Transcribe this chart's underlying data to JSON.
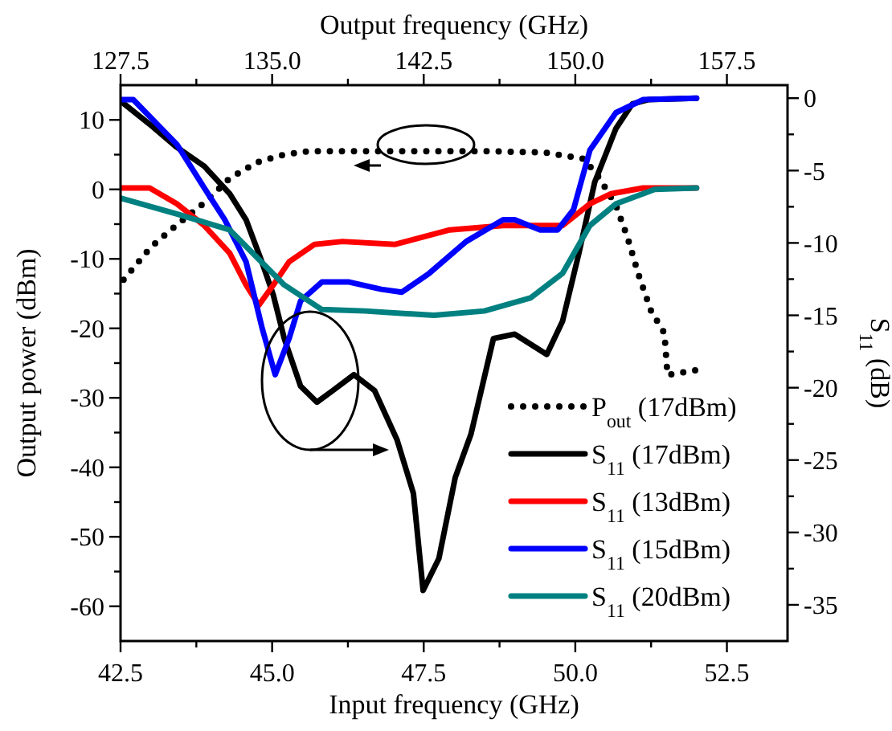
{
  "chart_data": {
    "type": "line",
    "xlabel": "Input frequency (GHz)",
    "x2label": "Output frequency (GHz)",
    "ylabel": "Output power (dBm)",
    "y2label": "S$_{11}$ (dB)",
    "xlim": [
      42.5,
      53.5
    ],
    "xticks": [
      42.5,
      {
        "value": 43.75,
        "label": null
      },
      {
        "value": 45,
        "label": "45.0"
      },
      {
        "value": 46.25,
        "label": null
      },
      47.5,
      {
        "value": 48.75,
        "label": null
      },
      {
        "value": 50,
        "label": "50.0"
      },
      {
        "value": 51.25,
        "label": null
      },
      52.5
    ],
    "x2lim": [
      127.5,
      160.5
    ],
    "x2ticks": [
      127.5,
      {
        "value": 131.25,
        "label": null
      },
      {
        "value": 135,
        "label": "135.0"
      },
      {
        "value": 138.75,
        "label": null
      },
      142.5,
      {
        "value": 146.25,
        "label": null
      },
      {
        "value": 150,
        "label": "150.0"
      },
      {
        "value": 153.75,
        "label": null
      },
      157.5
    ],
    "ylim": [
      -65,
      15
    ],
    "yticks": [
      -60,
      {
        "value": -55,
        "label": null
      },
      -50,
      {
        "value": -45,
        "label": null
      },
      -40,
      {
        "value": -35,
        "label": null
      },
      -30,
      {
        "value": -25,
        "label": null
      },
      -20,
      {
        "value": -15,
        "label": null
      },
      -10,
      {
        "value": -5,
        "label": null
      },
      0,
      {
        "value": 5,
        "label": null
      },
      10
    ],
    "y2lim": [
      -37.5,
      0.9
    ],
    "y2ticks": [
      -35,
      {
        "value": -32.5,
        "label": null
      },
      -30,
      {
        "value": -27.5,
        "label": null
      },
      -25,
      {
        "value": -22.5,
        "label": null
      },
      -20,
      {
        "value": -17.5,
        "label": null
      },
      -15,
      {
        "value": -12.5,
        "label": null
      },
      -10,
      {
        "value": -7.5,
        "label": null
      },
      -5,
      {
        "value": -2.5,
        "label": null
      },
      0
    ],
    "grid": false,
    "legend": "bottom right",
    "series": [
      {
        "name": "P$_{out}$ (17dBm)",
        "color": "#000000",
        "line_style": "dotted",
        "x": [
          42.55,
          43.0,
          43.4,
          43.9,
          44.3,
          44.75,
          45.2,
          45.6,
          46.5,
          47.5,
          48.5,
          49.5,
          50.14,
          50.4,
          50.67,
          50.86,
          51.04,
          51.25,
          51.47,
          51.52,
          52.0
        ],
        "values": [
          -13,
          -8.3,
          -5.3,
          -1.8,
          1.6,
          3.9,
          5,
          5.5,
          5.5,
          5.5,
          5.5,
          5.3,
          4.4,
          1.6,
          -2.3,
          -6.9,
          -12.2,
          -17.5,
          -20.7,
          -26.7,
          -26
        ]
      },
      {
        "name": "S$_{11}$ (17dBm)",
        "color": "#000000",
        "axis": "y2",
        "line_style": "solid",
        "x": [
          42.5,
          42.98,
          43.43,
          43.88,
          44.3,
          44.57,
          44.83,
          45.02,
          45.2,
          45.47,
          45.74,
          46.0,
          46.35,
          46.69,
          47.06,
          47.33,
          47.49,
          47.75,
          48.02,
          48.28,
          48.65,
          49.0,
          49.53,
          49.79,
          50.06,
          50.32,
          50.67,
          50.94,
          51.2,
          52.0
        ],
        "values": [
          -0.2,
          -1.8,
          -3.4,
          -4.7,
          -6.6,
          -8.4,
          -11.3,
          -13.6,
          -16.6,
          -19.9,
          -21,
          -20.2,
          -19.1,
          -20.2,
          -23.6,
          -27.3,
          -34,
          -31.8,
          -26.2,
          -23.2,
          -16.6,
          -16.3,
          -17.7,
          -15.4,
          -10.7,
          -5.8,
          -2.1,
          -0.4,
          -0.1,
          0
        ]
      },
      {
        "name": "S$_{11}$ (13dBm)",
        "color": "#ff0000",
        "axis": "y2",
        "line_style": "solid",
        "x": [
          42.5,
          42.98,
          43.43,
          43.88,
          44.3,
          44.57,
          44.78,
          45.02,
          45.28,
          45.7,
          46.16,
          47.03,
          47.93,
          48.81,
          49.53,
          49.79,
          50.24,
          50.59,
          51.12,
          52.0
        ],
        "values": [
          -6.2,
          -6.2,
          -7.3,
          -8.8,
          -10.7,
          -12.9,
          -14.3,
          -12.9,
          -11.3,
          -10.1,
          -9.9,
          -10.1,
          -9.1,
          -8.8,
          -8.8,
          -8.8,
          -7.3,
          -6.6,
          -6.2,
          -6.2
        ]
      },
      {
        "name": "S$_{11}$ (15dBm)",
        "color": "#0000ff",
        "axis": "y2",
        "line_style": "solid",
        "x": [
          42.5,
          42.71,
          43.43,
          43.88,
          44.22,
          44.57,
          44.83,
          45.05,
          45.28,
          45.47,
          45.82,
          46.27,
          46.8,
          47.14,
          47.59,
          48.2,
          48.81,
          49.0,
          49.42,
          49.71,
          49.97,
          50.24,
          50.67,
          51.12,
          52.0
        ],
        "values": [
          -0.1,
          -0.1,
          -3.2,
          -6.2,
          -8.4,
          -11.3,
          -15.8,
          -19.1,
          -16.6,
          -14,
          -12.7,
          -12.7,
          -13.2,
          -13.4,
          -12.1,
          -9.9,
          -8.4,
          -8.4,
          -9.1,
          -9.1,
          -7.7,
          -3.6,
          -1,
          -0.1,
          0
        ]
      },
      {
        "name": "S$_{11}$ (20dBm)",
        "color": "#008080",
        "axis": "y2",
        "line_style": "solid",
        "x": [
          42.5,
          43.43,
          44.3,
          44.75,
          45.2,
          45.82,
          46.53,
          47.67,
          48.5,
          49.26,
          49.79,
          50.24,
          50.67,
          51.31,
          52.0
        ],
        "values": [
          -6.9,
          -8,
          -9.1,
          -11,
          -12.9,
          -14.6,
          -14.7,
          -15,
          -14.7,
          -13.8,
          -12.1,
          -8.8,
          -7.3,
          -6.3,
          -6.2
        ]
      }
    ]
  }
}
